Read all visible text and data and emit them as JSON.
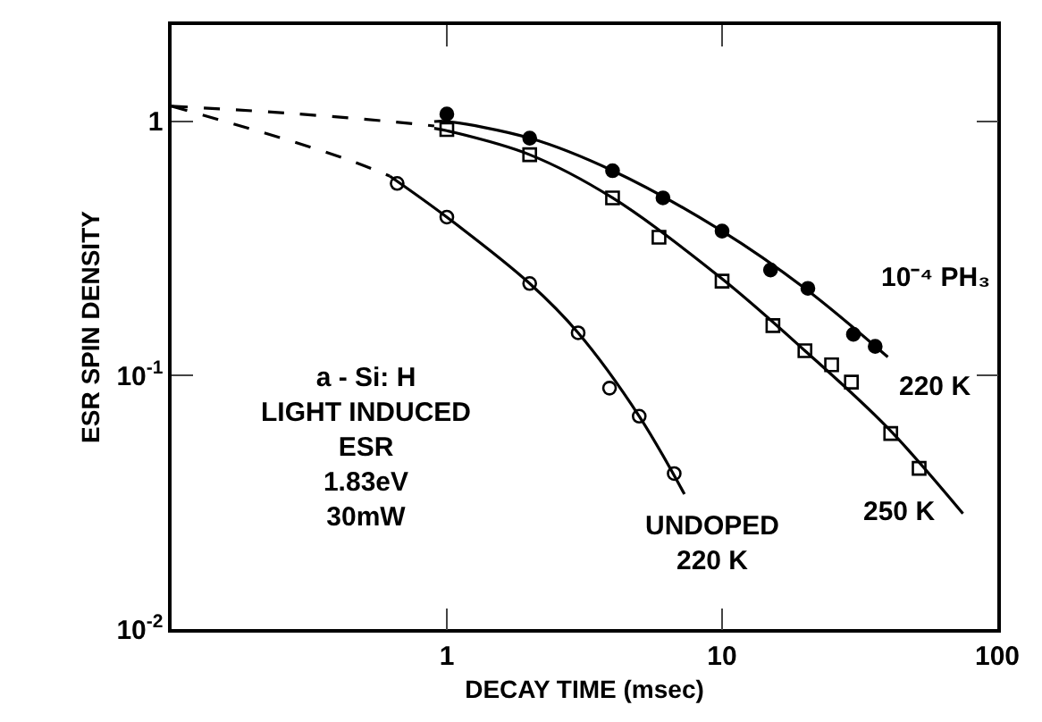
{
  "chart_data": {
    "type": "scatter",
    "xlabel": "DECAY TIME (msec)",
    "ylabel": "ESR SPIN DENSITY",
    "log": "xy",
    "xlim": [
      0.1,
      100
    ],
    "ylim": [
      0.01,
      2.4
    ],
    "xticks": [
      {
        "value": 0.1,
        "label": null
      },
      1,
      10,
      100
    ],
    "yticks": [
      {
        "value": 0.01,
        "label": "10$^{-2}$"
      },
      {
        "value": 0.1,
        "label": "10$^{-1}$"
      },
      1
    ],
    "series": [
      {
        "marker": "circle",
        "color": "#000000",
        "x": [
          1,
          2,
          4,
          6.1,
          10,
          15,
          20.5,
          30,
          36
        ],
        "values": [
          1.07,
          0.86,
          0.64,
          0.5,
          0.37,
          0.26,
          0.22,
          0.145,
          0.13
        ]
      },
      {
        "marker": "square-open",
        "color": "#000000",
        "x": [
          1,
          2,
          4,
          5.9,
          10,
          15.3,
          20,
          25,
          29.5,
          41,
          52
        ],
        "values": [
          0.93,
          0.74,
          0.5,
          0.35,
          0.235,
          0.157,
          0.125,
          0.11,
          0.094,
          0.059,
          0.043
        ]
      },
      {
        "marker": "circle-open",
        "color": "#000000",
        "x": [
          0.66,
          1,
          2,
          3,
          3.9,
          5,
          6.7
        ],
        "values": [
          0.57,
          0.42,
          0.23,
          0.147,
          0.089,
          0.069,
          0.041
        ]
      },
      {
        "type": "line",
        "marker": "none",
        "line_style": "solid",
        "color": "#000000",
        "x": [
          0.9,
          1,
          2,
          4,
          10,
          20,
          40
        ],
        "values": [
          1.0,
          1.0,
          0.86,
          0.64,
          0.37,
          0.22,
          0.118
        ]
      },
      {
        "type": "line",
        "marker": "none",
        "line_style": "solid",
        "color": "#000000",
        "x": [
          0.9,
          1,
          2,
          4,
          10,
          20,
          40,
          75
        ],
        "values": [
          0.94,
          0.92,
          0.74,
          0.5,
          0.24,
          0.125,
          0.062,
          0.0285
        ]
      },
      {
        "type": "line",
        "marker": "none",
        "line_style": "solid",
        "color": "#000000",
        "x": [
          0.62,
          1,
          2,
          3,
          5,
          7.3
        ],
        "values": [
          0.61,
          0.42,
          0.23,
          0.147,
          0.069,
          0.034
        ]
      },
      {
        "type": "line",
        "marker": "none",
        "line_style": "dashed",
        "color": "#000000",
        "x": [
          0.1,
          0.26,
          0.62,
          0.9
        ],
        "values": [
          1.15,
          1.08,
          1.0,
          0.96
        ]
      },
      {
        "type": "line",
        "marker": "none",
        "line_style": "dashed",
        "color": "#000000",
        "x": [
          0.1,
          0.26,
          0.45,
          0.62
        ],
        "values": [
          1.15,
          0.85,
          0.7,
          0.61
        ]
      }
    ],
    "annotations": [
      "10⁻⁴ PH₃",
      "220 K",
      "250 K",
      "UNDOPED\n220 K",
      "a - Si: H\nLIGHT INDUCED\nESR\n1.83eV\n30mW"
    ]
  }
}
